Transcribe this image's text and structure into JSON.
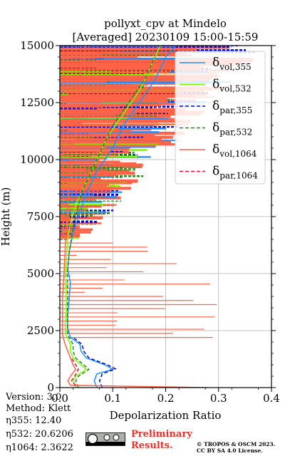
{
  "chart_data": {
    "type": "line",
    "title": "pollyxt_cpv at Mindelo",
    "subtitle": "[Averaged] 20230109 15:00-15:59",
    "xlabel": "Depolarization Ratio",
    "ylabel": "Height (m)",
    "xlim": [
      0.0,
      0.4
    ],
    "ylim": [
      0,
      15000
    ],
    "x_ticks": [
      "0.0",
      "0.1",
      "0.2",
      "0.3",
      "0.4"
    ],
    "y_ticks": [
      "0",
      "2500",
      "5000",
      "7500",
      "10000",
      "12500",
      "15000"
    ],
    "grid": true,
    "legend_position": "top-right",
    "series": [
      {
        "name": "δvol,355",
        "name_base": "δ",
        "name_sub": "vol,355",
        "color": "#1e90ff",
        "style": "solid",
        "points": [
          [
            0.07,
            0
          ],
          [
            0.065,
            300
          ],
          [
            0.07,
            600
          ],
          [
            0.1,
            800
          ],
          [
            0.085,
            1000
          ],
          [
            0.05,
            1300
          ],
          [
            0.04,
            1600
          ],
          [
            0.038,
            1900
          ],
          [
            0.02,
            2200
          ],
          [
            0.015,
            2600
          ],
          [
            0.015,
            3200
          ],
          [
            0.018,
            4000
          ],
          [
            0.02,
            4600
          ],
          [
            0.015,
            5200
          ],
          [
            0.018,
            6000
          ],
          [
            0.025,
            6800
          ],
          [
            0.035,
            7500
          ],
          [
            0.05,
            8500
          ],
          [
            0.07,
            9500
          ],
          [
            0.1,
            10500
          ],
          [
            0.12,
            11500
          ],
          [
            0.15,
            12500
          ],
          [
            0.18,
            13500
          ],
          [
            0.2,
            14500
          ],
          [
            0.22,
            15000
          ]
        ]
      },
      {
        "name": "δvol,532",
        "name_base": "δ",
        "name_sub": "vol,532",
        "color": "#7cfc00",
        "style": "solid",
        "points": [
          [
            0.03,
            0
          ],
          [
            0.025,
            300
          ],
          [
            0.03,
            500
          ],
          [
            0.05,
            800
          ],
          [
            0.04,
            1000
          ],
          [
            0.025,
            1300
          ],
          [
            0.02,
            1600
          ],
          [
            0.02,
            1900
          ],
          [
            0.012,
            2300
          ],
          [
            0.01,
            2700
          ],
          [
            0.012,
            3400
          ],
          [
            0.012,
            4200
          ],
          [
            0.01,
            4800
          ],
          [
            0.012,
            5500
          ],
          [
            0.015,
            6500
          ],
          [
            0.02,
            7200
          ],
          [
            0.03,
            8000
          ],
          [
            0.05,
            9000
          ],
          [
            0.07,
            10000
          ],
          [
            0.09,
            11000
          ],
          [
            0.12,
            12000
          ],
          [
            0.15,
            13000
          ],
          [
            0.17,
            14000
          ],
          [
            0.19,
            15000
          ]
        ]
      },
      {
        "name": "δpar,355",
        "name_base": "δ",
        "name_sub": "par,355",
        "color": "#0000cd",
        "style": "dashed",
        "points": [
          [
            0.08,
            0
          ],
          [
            0.075,
            300
          ],
          [
            0.08,
            600
          ],
          [
            0.105,
            820
          ],
          [
            0.09,
            1000
          ],
          [
            0.055,
            1300
          ],
          [
            0.045,
            1600
          ],
          [
            0.042,
            1900
          ],
          [
            0.025,
            2200
          ]
        ]
      },
      {
        "name": "δpar,532",
        "name_base": "δ",
        "name_sub": "par,532",
        "color": "#228b22",
        "style": "dashed",
        "points": [
          [
            0.035,
            0
          ],
          [
            0.03,
            300
          ],
          [
            0.035,
            500
          ],
          [
            0.055,
            800
          ],
          [
            0.045,
            1000
          ],
          [
            0.03,
            1300
          ],
          [
            0.025,
            1600
          ],
          [
            0.025,
            1900
          ],
          [
            0.015,
            2300
          ],
          [
            0.014,
            3000
          ],
          [
            0.015,
            4000
          ],
          [
            0.014,
            5000
          ],
          [
            0.018,
            6000
          ],
          [
            0.025,
            7000
          ],
          [
            0.04,
            8500
          ],
          [
            0.06,
            9500
          ],
          [
            0.08,
            10500
          ],
          [
            0.1,
            11500
          ],
          [
            0.13,
            12500
          ],
          [
            0.16,
            13500
          ],
          [
            0.18,
            14500
          ]
        ]
      },
      {
        "name": "δvol,1064",
        "name_base": "δ",
        "name_sub": "vol,1064",
        "color": "#ff6347",
        "style": "solid",
        "points": [
          [
            0.28,
            0
          ],
          [
            0.02,
            100
          ],
          [
            0.015,
            300
          ],
          [
            0.02,
            500
          ],
          [
            0.03,
            800
          ],
          [
            0.025,
            1000
          ],
          [
            0.02,
            1300
          ],
          [
            0.015,
            1600
          ],
          [
            0.01,
            1900
          ],
          [
            0.005,
            2300
          ],
          [
            0.005,
            3000
          ],
          [
            0.005,
            4000
          ],
          [
            0.008,
            5000
          ],
          [
            0.01,
            6000
          ],
          [
            0.012,
            7000
          ],
          [
            0.015,
            8000
          ],
          [
            0.02,
            9000
          ],
          [
            0.02,
            10000
          ],
          [
            0.03,
            11000
          ],
          [
            0.03,
            12000
          ],
          [
            0.035,
            13000
          ],
          [
            0.04,
            14000
          ],
          [
            0.05,
            15000
          ]
        ]
      },
      {
        "name": "δpar,1064",
        "name_base": "δ",
        "name_sub": "par,1064",
        "color": "#dc143c",
        "style": "dashed",
        "points": [
          [
            0.03,
            100
          ],
          [
            0.022,
            300
          ],
          [
            0.028,
            500
          ],
          [
            0.035,
            800
          ],
          [
            0.03,
            1000
          ],
          [
            0.022,
            1300
          ]
        ]
      }
    ]
  },
  "meta": {
    "version": "Version: 3.0",
    "method": "Method: Klett",
    "eta355": "η355:  12.40",
    "eta532": "η532: 20.6206",
    "eta1064": "η1064: 2.3622",
    "preliminary_line1": "Preliminary",
    "preliminary_line2": "Results.",
    "copyright_line1": "© TROPOS & OSCM 2023.",
    "copyright_line2": "CC BY SA 4.0 License.",
    "cc_icon": "creative-commons-by-sa-badge"
  }
}
